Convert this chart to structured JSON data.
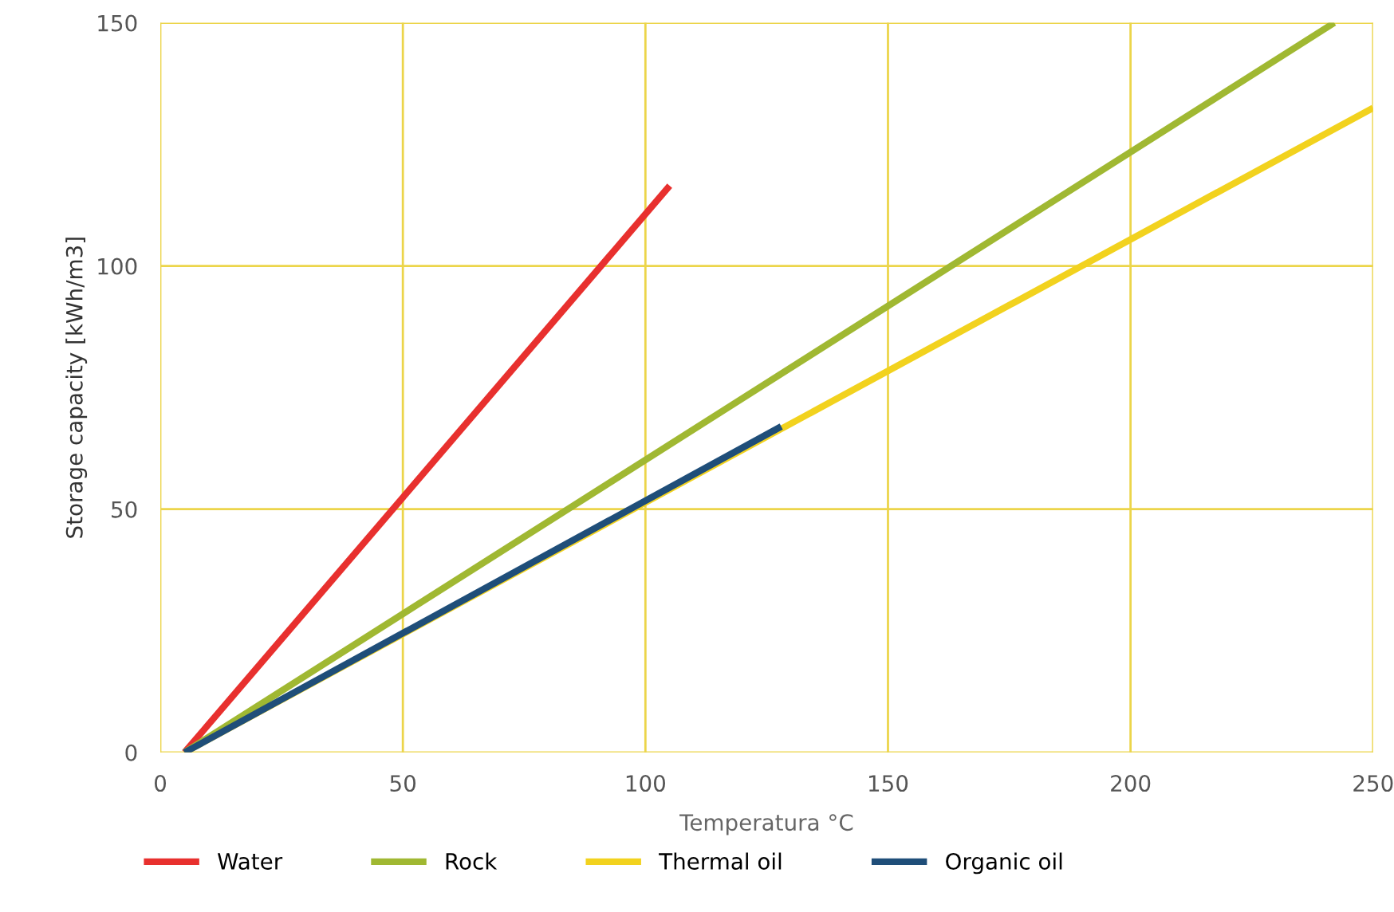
{
  "chart_data": {
    "type": "line",
    "xlabel": "Temperatura °C",
    "ylabel": "Storage capacity [kWh/m3]",
    "xlim": [
      0,
      250
    ],
    "ylim": [
      0,
      150
    ],
    "xticks": [
      0,
      50,
      100,
      150,
      200,
      250
    ],
    "yticks": [
      0,
      50,
      100,
      150
    ],
    "grid": true,
    "legend": "bottom",
    "marker": "none",
    "line_style": "solid",
    "series": [
      {
        "name": "Water",
        "color": "#e8302e",
        "x": [
          5,
          105
        ],
        "values": [
          0,
          116.5
        ]
      },
      {
        "name": "Rock",
        "color": "#a0b832",
        "x": [
          5,
          242
        ],
        "values": [
          0,
          150
        ]
      },
      {
        "name": "Thermal oil",
        "color": "#f2d21e",
        "x": [
          5,
          250
        ],
        "values": [
          0,
          132.5
        ]
      },
      {
        "name": "Organic oil",
        "color": "#1f4e79",
        "x": [
          5,
          128
        ],
        "values": [
          0,
          67
        ]
      }
    ]
  }
}
